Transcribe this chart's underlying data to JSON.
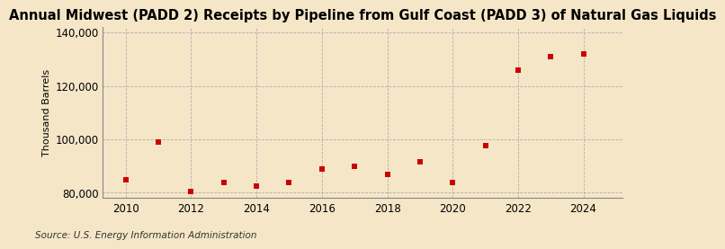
{
  "title": "Annual Midwest (PADD 2) Receipts by Pipeline from Gulf Coast (PADD 3) of Natural Gas Liquids",
  "ylabel": "Thousand Barrels",
  "source": "Source: U.S. Energy Information Administration",
  "background_color": "#f5e6c8",
  "plot_bg_color": "#f5e6c8",
  "years": [
    2010,
    2011,
    2012,
    2013,
    2014,
    2015,
    2016,
    2017,
    2018,
    2019,
    2020,
    2021,
    2022,
    2023,
    2024
  ],
  "values": [
    85000,
    99000,
    80500,
    84000,
    82500,
    84000,
    89000,
    90000,
    87000,
    91500,
    84000,
    97500,
    126000,
    131000,
    132000
  ],
  "marker_color": "#cc0000",
  "marker_size": 4,
  "grid_color": "#aaaaaa",
  "ylim": [
    78000,
    142000
  ],
  "yticks": [
    80000,
    100000,
    120000,
    140000
  ],
  "ytick_labels": [
    "80,000",
    "100,000",
    "120,000",
    "140,000"
  ],
  "xticks": [
    2010,
    2012,
    2014,
    2016,
    2018,
    2020,
    2022,
    2024
  ],
  "xlim": [
    2009.3,
    2025.2
  ],
  "title_fontsize": 10.5,
  "axis_fontsize": 8.5,
  "ylabel_fontsize": 8,
  "source_fontsize": 7.5
}
